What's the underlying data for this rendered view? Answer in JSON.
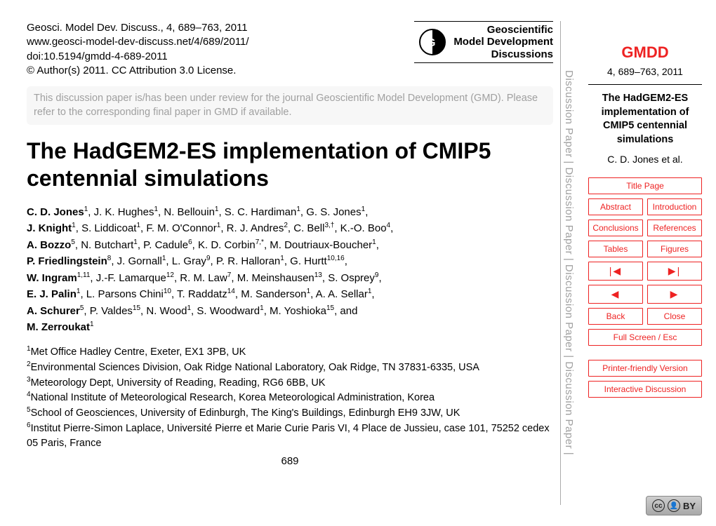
{
  "citation": {
    "line1": "Geosci. Model Dev. Discuss., 4, 689–763, 2011",
    "line2": "www.geosci-model-dev-discuss.net/4/689/2011/",
    "line3": "doi:10.5194/gmdd-4-689-2011",
    "line4": "© Author(s) 2011. CC Attribution 3.0 License."
  },
  "journal_logo": {
    "line1": "Geoscientific",
    "line2": "Model Development",
    "line3": "Discussions"
  },
  "review_note": "This discussion paper is/has been under review for the journal Geoscientific Model Development (GMD). Please refer to the corresponding final paper in GMD if available.",
  "title": "The HadGEM2-ES implementation of CMIP5 centennial simulations",
  "authors_html_parts": [
    "C. D. Jones|1|, J. K. Hughes|1|, N. Bellouin|1|, S. C. Hardiman|1|, G. S. Jones|1|,",
    "J. Knight|1|, S. Liddicoat|1|, F. M. O'Connor|1|, R. J. Andres|2|, C. Bell|3,†|, K.-O. Boo|4|,",
    "A. Bozzo|5|, N. Butchart|1|, P. Cadule|6|, K. D. Corbin|7,*|, M. Doutriaux-Boucher|1|,",
    "P. Friedlingstein|8|, J. Gornall|1|, L. Gray|9|, P. R. Halloran|1|, G. Hurtt|10,16|,",
    "W. Ingram|1,11|, J.-F. Lamarque|12|, R. M. Law|7|, M. Meinshausen|13|, S. Osprey|9|,",
    "E. J. Palin|1|, L. Parsons Chini|10|, T. Raddatz|14|, M. Sanderson|1|, A. A. Sellar|1|,",
    "A. Schurer|5|, P. Valdes|15|, N. Wood|1|, S. Woodward|1|, M. Yoshioka|15|, and",
    "M. Zerroukat|1|"
  ],
  "affiliations": [
    "1|Met Office Hadley Centre, Exeter, EX1 3PB, UK",
    "2|Environmental Sciences Division, Oak Ridge National Laboratory, Oak Ridge, TN 37831-6335, USA",
    "3|Meteorology Dept, University of Reading, Reading, RG6 6BB, UK",
    "4|National Institute of Meteorological Research, Korea Meteorological Administration, Korea",
    "5|School of Geosciences, University of Edinburgh, The King's Buildings, Edinburgh EH9 3JW, UK",
    "6|Institut Pierre-Simon Laplace, Université Pierre et Marie Curie Paris VI, 4 Place de Jussieu, case 101, 75252 cedex 05 Paris, France"
  ],
  "page_number": "689",
  "vstrip_text": "Discussion Paper    |    Discussion Paper    |    Discussion Paper    |    Discussion Paper    |",
  "sidebar": {
    "abbrev": "GMDD",
    "pages": "4, 689–763, 2011",
    "short_title": "The HadGEM2-ES implementation of CMIP5 centennial simulations",
    "authors_short": "C. D. Jones et al.",
    "nav": {
      "title_page": "Title Page",
      "abstract": "Abstract",
      "introduction": "Introduction",
      "conclusions": "Conclusions",
      "references": "References",
      "tables": "Tables",
      "figures": "Figures",
      "prev_jump": "|◀",
      "next_jump": "▶|",
      "prev": "◀",
      "next": "▶",
      "back": "Back",
      "close": "Close",
      "fullscreen": "Full Screen / Esc",
      "printer": "Printer-friendly Version",
      "interactive": "Interactive Discussion"
    }
  },
  "cc": {
    "cc": "cc",
    "by_icon": "👤",
    "label": "BY"
  },
  "colors": {
    "accent": "#e22222",
    "strip_text": "#a0a0a0"
  }
}
